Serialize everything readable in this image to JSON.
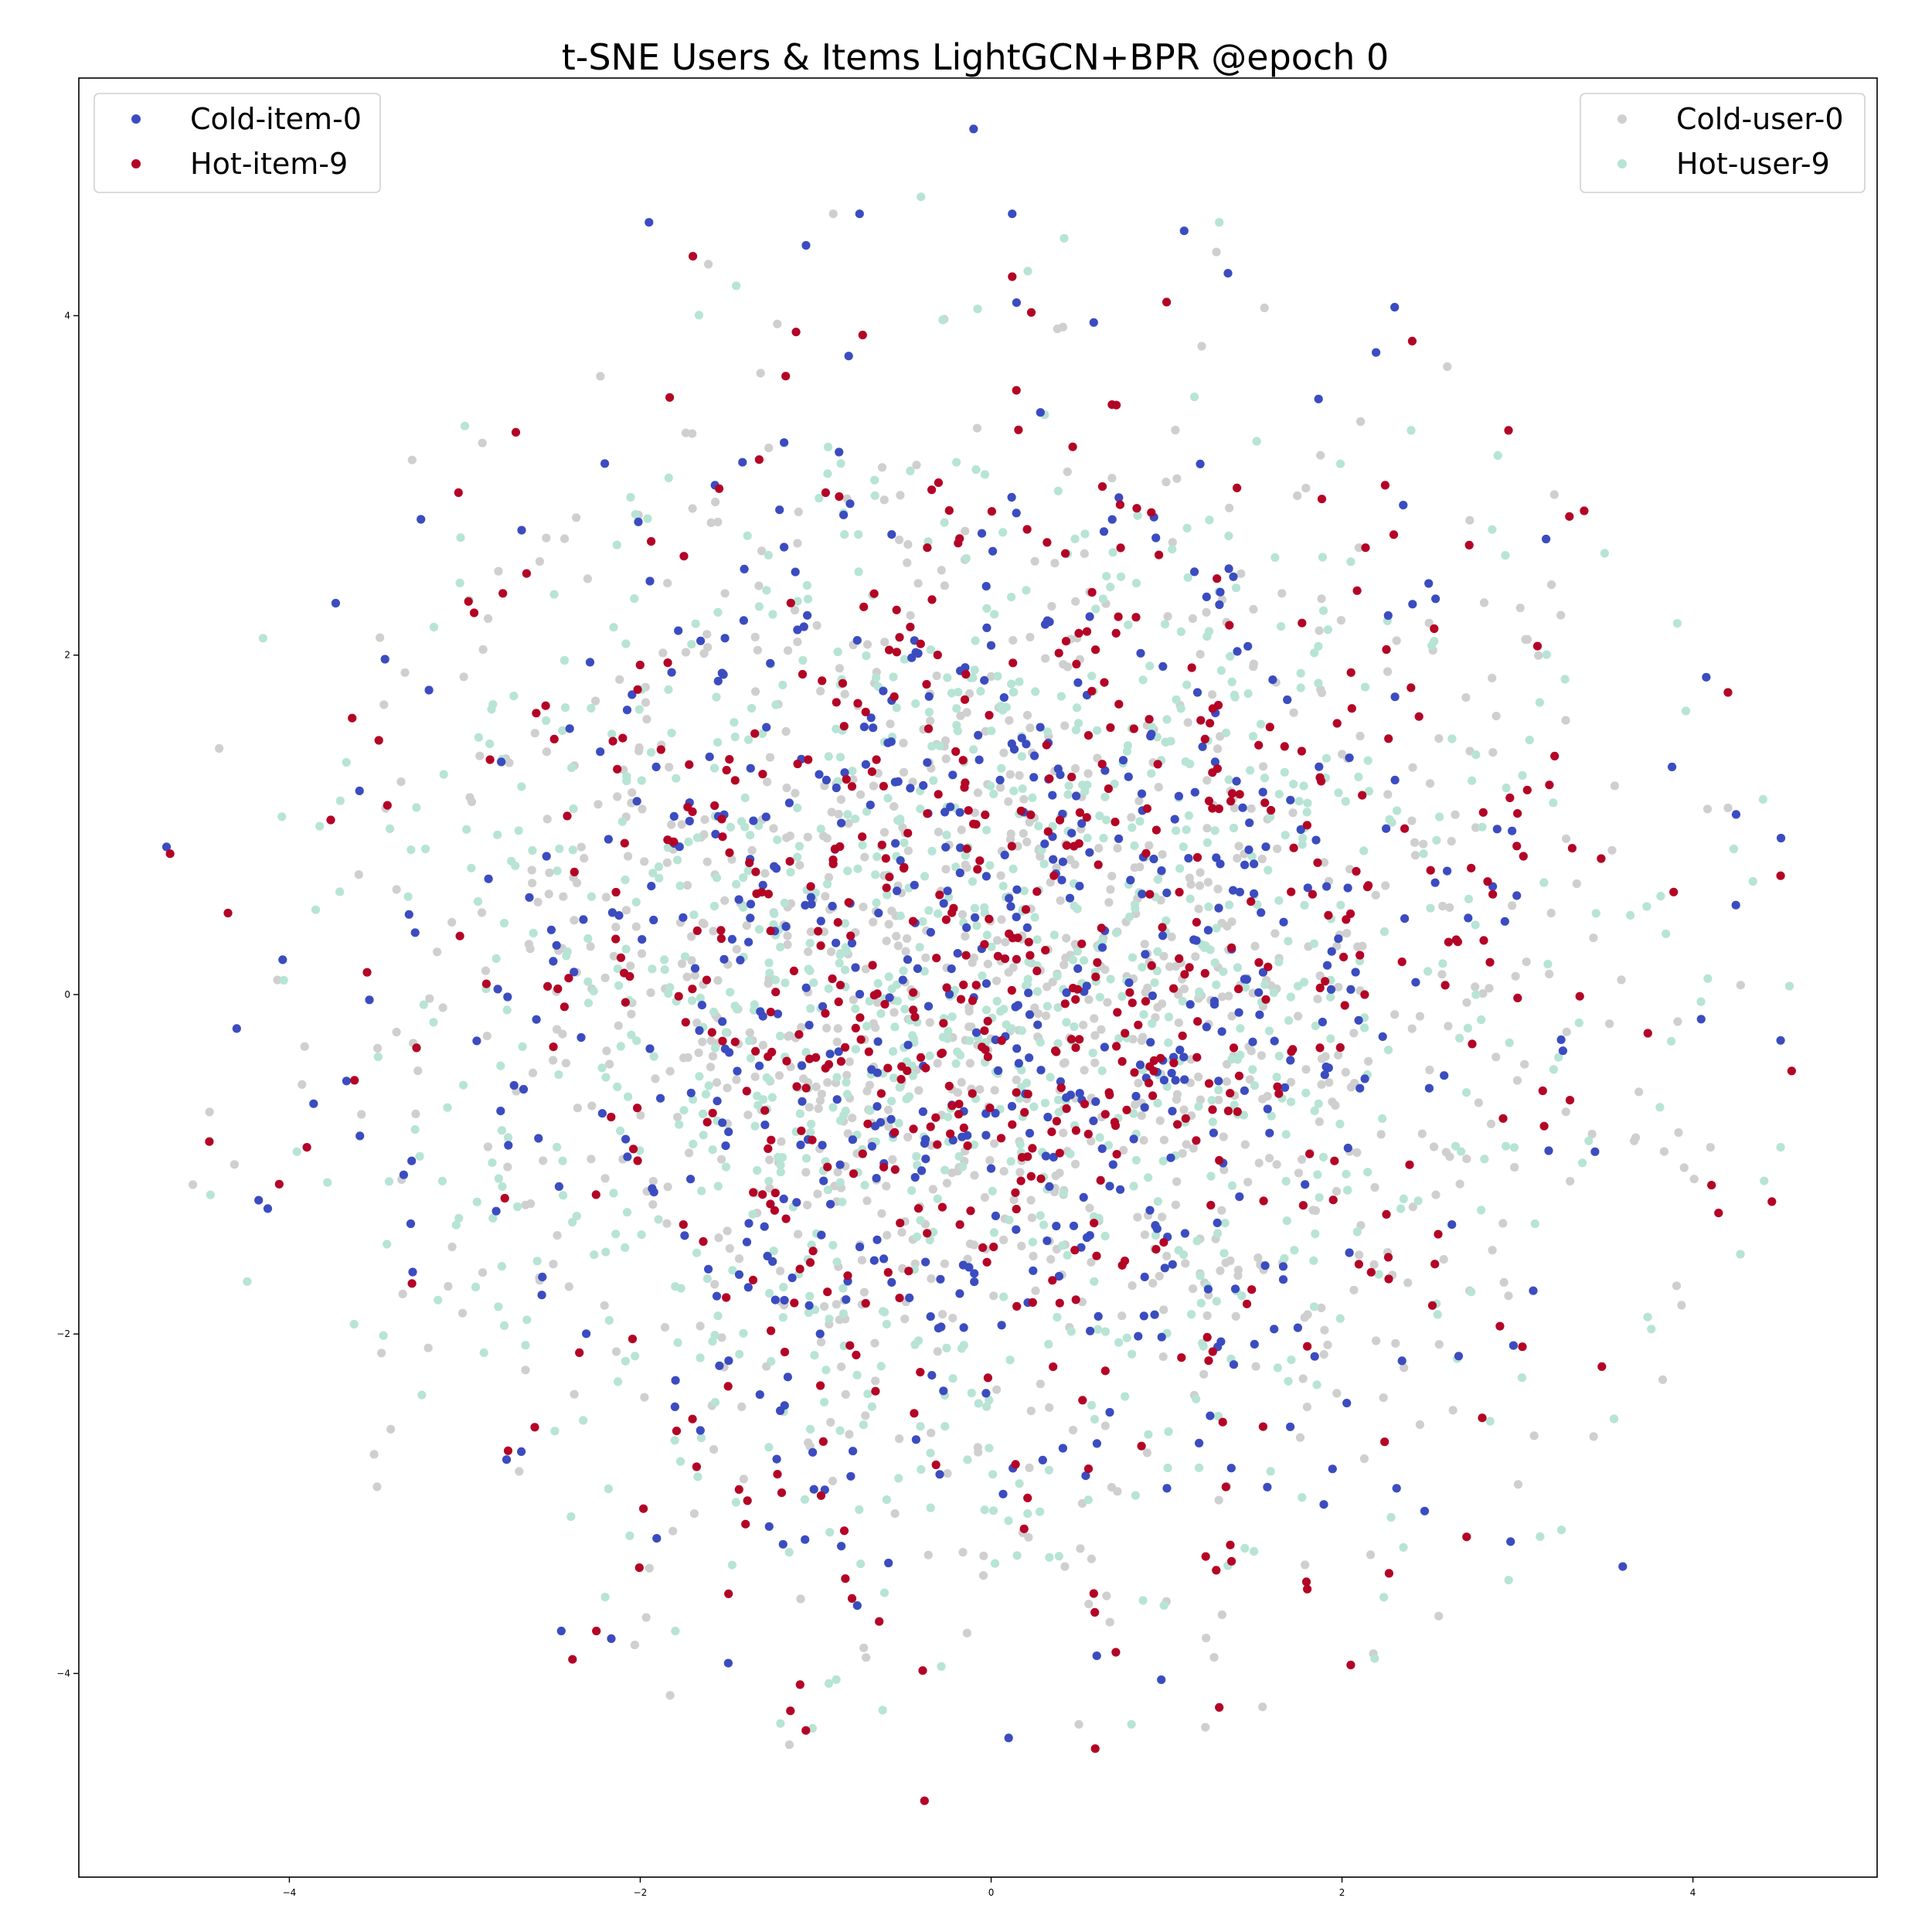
{
  "chart_data": {
    "type": "scatter",
    "title": "t-SNE Users & Items LightGCN+BPR @epoch 0",
    "xlabel": "",
    "ylabel": "",
    "xlim": [
      -5.2,
      5.05
    ],
    "ylim": [
      -5.2,
      5.4
    ],
    "xticks": [
      -4,
      -2,
      0,
      2,
      4
    ],
    "yticks": [
      -4,
      -2,
      0,
      2,
      4
    ],
    "xtick_labels": [
      "−4",
      "−2",
      "0",
      "2",
      "4"
    ],
    "ytick_labels": [
      "−4",
      "−2",
      "0",
      "2",
      "4"
    ],
    "grid": false,
    "legends": [
      {
        "placement": "top-left",
        "entries": [
          "Cold-item-0",
          "Hot-item-9"
        ]
      },
      {
        "placement": "top-right",
        "entries": [
          "Cold-user-0",
          "Hot-user-9"
        ]
      }
    ],
    "series": [
      {
        "name": "Cold-user-0",
        "color": "#cfcfcf",
        "count": 1100,
        "points": [
          [
            -4.55,
            -1.12
          ],
          [
            -4.4,
            1.45
          ],
          [
            -3.3,
            3.15
          ],
          [
            -2.9,
            3.25
          ],
          [
            -2.3,
            2.45
          ],
          [
            4.1,
            -0.9
          ],
          [
            -0.9,
            4.6
          ],
          [
            1.2,
            3.82
          ],
          [
            3.95,
            -1.02
          ],
          [
            4.2,
            1.1
          ],
          [
            -3.5,
            -2.9
          ],
          [
            2.6,
            3.7
          ],
          [
            0.5,
            -4.3
          ],
          [
            -1.15,
            -4.42
          ],
          [
            3.3,
            -1.1
          ]
        ]
      },
      {
        "name": "Hot-user-9",
        "color": "#b7e4d5",
        "count": 1100,
        "points": [
          [
            -4.45,
            -1.18
          ],
          [
            -4.15,
            2.1
          ],
          [
            -3.0,
            3.35
          ],
          [
            -0.4,
            4.7
          ],
          [
            1.3,
            4.55
          ],
          [
            4.5,
            -0.9
          ],
          [
            4.55,
            0.05
          ],
          [
            -1.8,
            -3.75
          ],
          [
            0.8,
            -4.3
          ],
          [
            3.55,
            -2.5
          ],
          [
            -3.85,
            0.5
          ],
          [
            2.05,
            2.55
          ],
          [
            -2.2,
            -3.55
          ],
          [
            3.1,
            -1.35
          ],
          [
            4.4,
            1.15
          ]
        ]
      },
      {
        "name": "Cold-item-0",
        "color": "#3b4cc0",
        "count": 650,
        "points": [
          [
            -4.7,
            0.87
          ],
          [
            -4.3,
            -0.2
          ],
          [
            -3.6,
            1.2
          ],
          [
            -3.25,
            2.8
          ],
          [
            -1.95,
            4.55
          ],
          [
            -0.75,
            4.6
          ],
          [
            -0.1,
            5.1
          ],
          [
            0.12,
            4.6
          ],
          [
            1.1,
            4.5
          ],
          [
            1.35,
            4.25
          ],
          [
            2.3,
            4.05
          ],
          [
            3.6,
            -3.37
          ],
          [
            4.5,
            -0.27
          ],
          [
            -2.45,
            -3.75
          ],
          [
            0.1,
            -4.38
          ]
        ]
      },
      {
        "name": "Hot-item-9",
        "color": "#b40426",
        "count": 650,
        "points": [
          [
            -4.68,
            0.83
          ],
          [
            -4.35,
            0.48
          ],
          [
            -3.9,
            -0.9
          ],
          [
            -1.7,
            4.35
          ],
          [
            0.12,
            4.23
          ],
          [
            1.0,
            4.08
          ],
          [
            2.4,
            3.85
          ],
          [
            3.38,
            2.85
          ],
          [
            4.2,
            1.78
          ],
          [
            4.5,
            0.7
          ],
          [
            4.45,
            -1.22
          ],
          [
            -0.38,
            -4.75
          ],
          [
            2.05,
            -3.95
          ],
          [
            1.3,
            -4.2
          ],
          [
            -2.25,
            -3.75
          ]
        ]
      }
    ]
  }
}
